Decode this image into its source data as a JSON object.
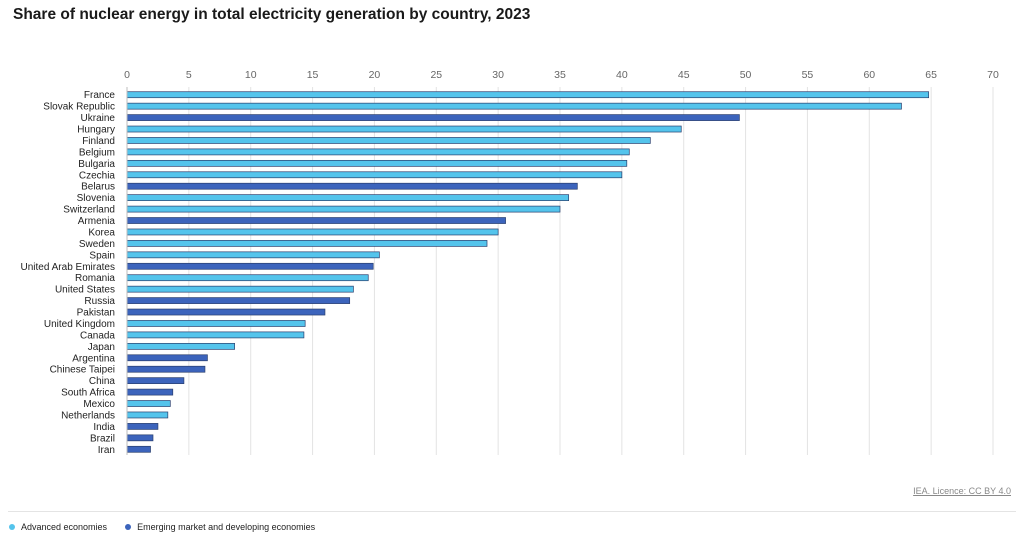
{
  "chart_data": {
    "type": "bar",
    "orientation": "horizontal",
    "title": "Share of nuclear energy in total electricity generation by country, 2023",
    "xlim": [
      0,
      70
    ],
    "xticks": [
      0,
      5,
      10,
      15,
      20,
      25,
      30,
      35,
      40,
      45,
      50,
      55,
      60,
      65,
      70
    ],
    "grid": true,
    "categories": [
      "France",
      "Slovak Republic",
      "Ukraine",
      "Hungary",
      "Finland",
      "Belgium",
      "Bulgaria",
      "Czechia",
      "Belarus",
      "Slovenia",
      "Switzerland",
      "Armenia",
      "Korea",
      "Sweden",
      "Spain",
      "United Arab Emirates",
      "Romania",
      "United States",
      "Russia",
      "Pakistan",
      "United Kingdom",
      "Canada",
      "Japan",
      "Argentina",
      "Chinese Taipei",
      "China",
      "South Africa",
      "Mexico",
      "Netherlands",
      "India",
      "Brazil",
      "Iran"
    ],
    "values": [
      64.8,
      62.6,
      49.5,
      44.8,
      42.3,
      40.6,
      40.4,
      40.0,
      36.4,
      35.7,
      35.0,
      30.6,
      30.0,
      29.1,
      20.4,
      19.9,
      19.5,
      18.3,
      18.0,
      16.0,
      14.4,
      14.3,
      8.7,
      6.5,
      6.3,
      4.6,
      3.7,
      3.5,
      3.3,
      2.5,
      2.1,
      1.9
    ],
    "groups": [
      "advanced",
      "advanced",
      "emerging",
      "advanced",
      "advanced",
      "advanced",
      "advanced",
      "advanced",
      "emerging",
      "advanced",
      "advanced",
      "emerging",
      "advanced",
      "advanced",
      "advanced",
      "emerging",
      "advanced",
      "advanced",
      "emerging",
      "emerging",
      "advanced",
      "advanced",
      "advanced",
      "emerging",
      "emerging",
      "emerging",
      "emerging",
      "advanced",
      "advanced",
      "emerging",
      "emerging",
      "emerging"
    ],
    "legend": [
      {
        "key": "advanced",
        "label": "Advanced economies",
        "color": "#54c4ec"
      },
      {
        "key": "emerging",
        "label": "Emerging market and developing economies",
        "color": "#3c64bc"
      }
    ],
    "legend_position": "bottom-left"
  },
  "credit": "IEA. Licence: CC BY 4.0"
}
